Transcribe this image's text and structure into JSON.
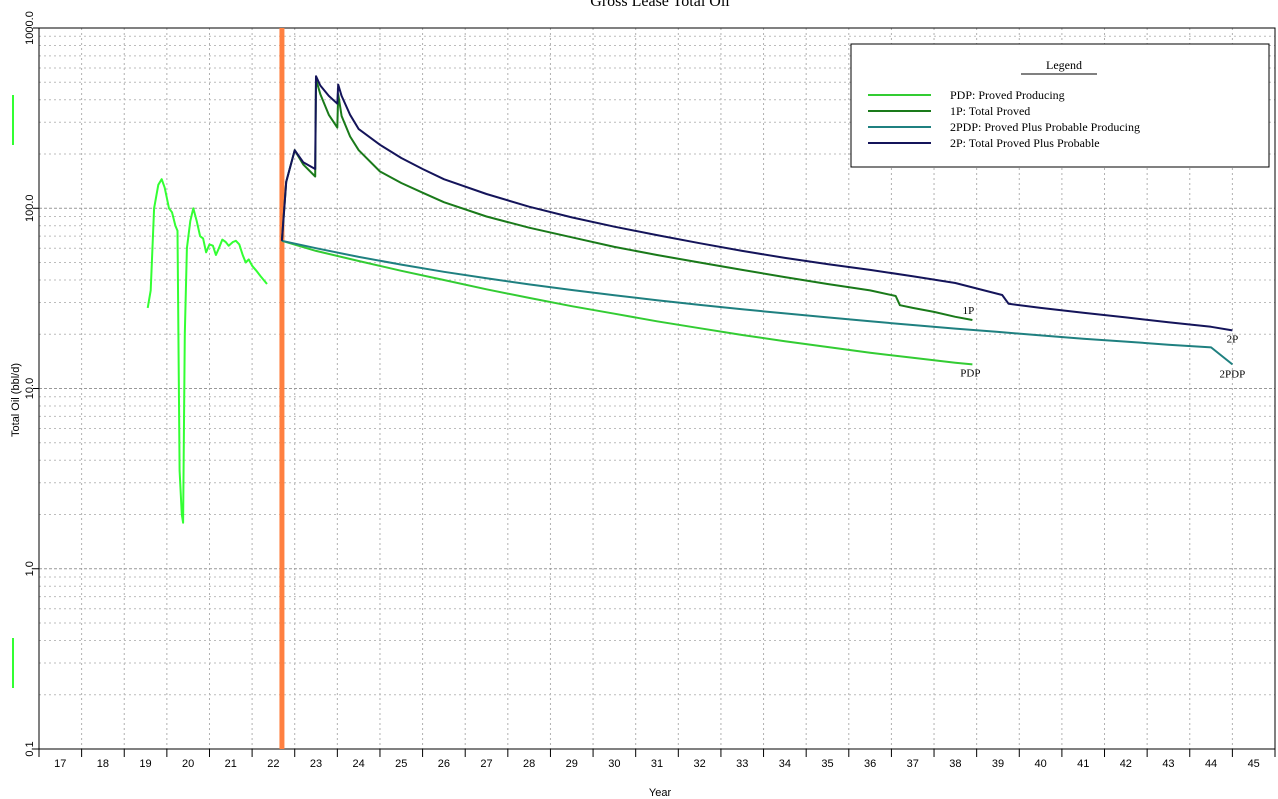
{
  "chart_data": {
    "type": "line",
    "title": "Gross Lease Total Oil",
    "xlabel": "Year",
    "ylabel": "Total Oil (bbl/d)",
    "xlim": [
      16.5,
      45.5
    ],
    "ylim": [
      0.1,
      1000
    ],
    "yscale": "log",
    "grid": true,
    "legend_position": "top-right",
    "x_ticks": [
      "17",
      "18",
      "19",
      "20",
      "21",
      "22",
      "23",
      "24",
      "25",
      "26",
      "27",
      "28",
      "29",
      "30",
      "31",
      "32",
      "33",
      "34",
      "35",
      "36",
      "37",
      "38",
      "39",
      "40",
      "41",
      "42",
      "43",
      "44",
      "45"
    ],
    "y_ticks": [
      "0.1",
      "1.0",
      "10.0",
      "100.0",
      "1000.0"
    ],
    "vertical_marker": {
      "x": 22.2,
      "color": "#ff8040"
    },
    "legend": {
      "title": "Legend",
      "entries": [
        {
          "label": "PDP: Proved Producing",
          "color": "#33cc33"
        },
        {
          "label": "1P: Total Proved",
          "color": "#1a7a1a"
        },
        {
          "label": "2PDP: Proved Plus Probable Producing",
          "color": "#1f8080"
        },
        {
          "label": "2P: Total Proved Plus Probable",
          "color": "#14145a"
        }
      ]
    },
    "historical": {
      "color": "#33ff33",
      "x": [
        19.05,
        19.12,
        19.2,
        19.3,
        19.38,
        19.45,
        19.55,
        19.62,
        19.7,
        19.75,
        19.8,
        19.85,
        19.88,
        19.92,
        19.97,
        20.05,
        20.12,
        20.2,
        20.28,
        20.35,
        20.42,
        20.5,
        20.58,
        20.65,
        20.72,
        20.8,
        20.88,
        20.95,
        21.05,
        21.12,
        21.2,
        21.28,
        21.35,
        21.42,
        21.5,
        21.6,
        21.7,
        21.85
      ],
      "y": [
        28,
        35,
        100,
        135,
        145,
        130,
        100,
        95,
        80,
        75,
        3.5,
        2.0,
        1.8,
        20,
        60,
        85,
        100,
        85,
        70,
        68,
        57,
        63,
        62,
        55,
        60,
        67,
        65,
        62,
        65,
        66,
        63,
        55,
        50,
        52,
        48,
        45,
        42,
        38
      ]
    },
    "series": [
      {
        "name": "PDP",
        "color": "#33cc33",
        "end_label": "PDP",
        "x": [
          22.2,
          23,
          24,
          25,
          26,
          27,
          28,
          29,
          30,
          31,
          32,
          33,
          34,
          35,
          36,
          37,
          38,
          38.4
        ],
        "y": [
          66,
          58,
          51,
          45,
          40,
          35.5,
          31.8,
          28.6,
          26,
          23.6,
          21.6,
          19.8,
          18.3,
          17,
          15.8,
          14.8,
          13.9,
          13.6
        ]
      },
      {
        "name": "1P",
        "color": "#1a7a1a",
        "end_label": "1P",
        "x": [
          22.2,
          22.3,
          22.5,
          22.7,
          22.98,
          23.0,
          23.1,
          23.3,
          23.5,
          23.52,
          23.6,
          23.8,
          24,
          24.5,
          25,
          25.5,
          26,
          27,
          28,
          29,
          30,
          31,
          32,
          33,
          34,
          35,
          36,
          36.6,
          36.7,
          37,
          37.5,
          38,
          38.4
        ],
        "y": [
          66,
          140,
          210,
          175,
          150,
          520,
          430,
          330,
          280,
          430,
          325,
          250,
          210,
          160,
          138,
          122,
          108,
          90,
          78,
          69,
          61,
          55,
          50,
          45.5,
          41.5,
          38,
          35,
          32.6,
          29,
          28,
          26.6,
          25,
          24
        ]
      },
      {
        "name": "2PDP",
        "color": "#1f8080",
        "end_label": "2PDP",
        "x": [
          22.2,
          23,
          24,
          25,
          26,
          27,
          28,
          29,
          30,
          31,
          32,
          33,
          34,
          35,
          36,
          37,
          38,
          39,
          40,
          41,
          42,
          43,
          44,
          44.5
        ],
        "y": [
          66,
          60,
          53.7,
          48.7,
          44.4,
          40.9,
          37.8,
          35.2,
          32.9,
          30.9,
          29.1,
          27.5,
          26.1,
          24.8,
          23.6,
          22.5,
          21.5,
          20.6,
          19.7,
          18.9,
          18.2,
          17.5,
          16.9,
          13.6
        ]
      },
      {
        "name": "2P",
        "color": "#14145a",
        "end_label": "2P",
        "x": [
          22.2,
          22.3,
          22.5,
          22.7,
          22.98,
          23.0,
          23.1,
          23.3,
          23.5,
          23.52,
          23.6,
          23.8,
          24,
          24.5,
          25,
          25.5,
          26,
          27,
          28,
          29,
          30,
          31,
          32,
          33,
          34,
          35,
          36,
          37,
          38,
          39.1,
          39.25,
          40,
          41,
          42,
          43,
          44,
          44.5
        ],
        "y": [
          66,
          140,
          210,
          180,
          165,
          540,
          480,
          420,
          380,
          485,
          420,
          330,
          275,
          225,
          190,
          165,
          145,
          120,
          102,
          89,
          79,
          71,
          64,
          58,
          53,
          49,
          45.5,
          42,
          38.5,
          33,
          29.5,
          28,
          26.3,
          24.8,
          23.3,
          22,
          21
        ]
      }
    ]
  }
}
